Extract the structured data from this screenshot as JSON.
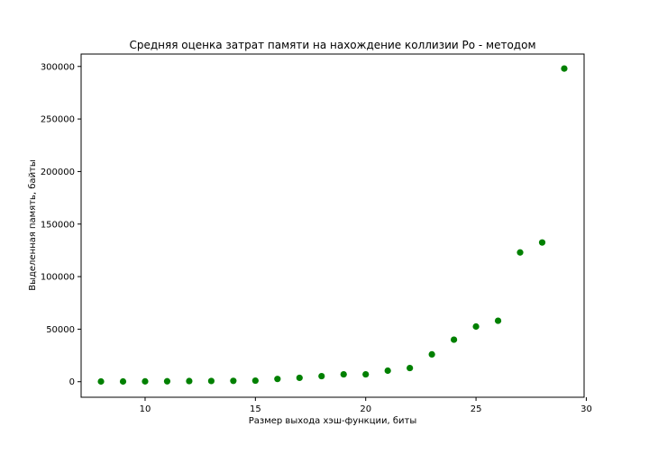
{
  "chart_data": {
    "type": "scatter",
    "title": "Средняя оценка затрат памяти на нахождение коллизии Ро - методом",
    "xlabel": "Размер выхода хэш-функции, биты",
    "ylabel": "Выделенная память, байты",
    "xlim": [
      7.1,
      29.9
    ],
    "ylim": [
      -14800,
      311800
    ],
    "xticks": [
      10,
      15,
      20,
      25,
      30
    ],
    "yticks": [
      0,
      50000,
      100000,
      150000,
      200000,
      250000,
      300000
    ],
    "grid": false,
    "color": "#008000",
    "x": [
      8,
      9,
      10,
      11,
      12,
      13,
      14,
      15,
      16,
      17,
      18,
      19,
      20,
      21,
      22,
      23,
      24,
      25,
      26,
      27,
      28,
      29
    ],
    "y": [
      200,
      200,
      300,
      400,
      600,
      700,
      800,
      1000,
      2600,
      3700,
      5300,
      7000,
      7000,
      10500,
      13000,
      26000,
      40000,
      52500,
      58000,
      123000,
      132500,
      298000
    ]
  }
}
